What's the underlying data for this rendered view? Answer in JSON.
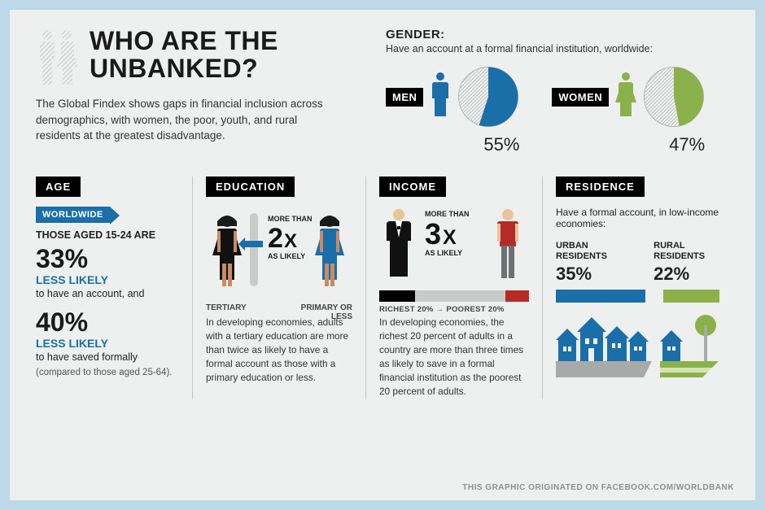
{
  "colors": {
    "frame": "#bdd8e6",
    "paper": "#eef0ef",
    "ink": "#1a1a1a",
    "black": "#000000",
    "white": "#ffffff",
    "blue": "#1a6fa9",
    "green": "#8bb24a",
    "red": "#b72b27",
    "grey": "#a8aaa9",
    "hatched": "#cfd1d0",
    "divider": "#c6c8c7",
    "silhouette": "#d6d8d7"
  },
  "title": "WHO ARE THE UNBANKED?",
  "intro": "The Global Findex shows gaps in financial inclusion across demographics, with women, the poor, youth, and rural residents at the greatest disadvantage.",
  "gender": {
    "heading": "GENDER:",
    "sub": "Have an account at a formal financial institution, worldwide:",
    "men": {
      "label": "MEN",
      "pct": "55%",
      "value": 55,
      "color": "#1a6fa9"
    },
    "women": {
      "label": "WOMEN",
      "pct": "47%",
      "value": 47,
      "color": "#8bb24a"
    }
  },
  "age": {
    "tag": "AGE",
    "worldwide": "WORLDWIDE",
    "line1": "THOSE AGED 15-24 ARE",
    "pct1": "33%",
    "ll1": "LESS LIKELY",
    "sub1": "to have an account, and",
    "pct2": "40%",
    "ll2": "LESS LIKELY",
    "sub2": "to have saved formally",
    "note": "(compared to those aged 25-64)."
  },
  "education": {
    "tag": "EDUCATION",
    "mult_pre": "MORE THAN",
    "mult_num": "2X",
    "mult_suf": "AS LIKELY",
    "left_label": "TERTIARY",
    "right_label": "PRIMARY OR LESS",
    "body": "In developing economies, adults with a tertiary education are more than twice as likely to have a formal account as those with a primary education or less.",
    "tertiary_color": "#000000",
    "primary_color": "#1a6fa9"
  },
  "income": {
    "tag": "INCOME",
    "mult_pre": "MORE THAN",
    "mult_num": "3X",
    "mult_suf": "AS LIKELY",
    "bar": {
      "rich": 0.24,
      "mid": 0.6,
      "poor": 0.16,
      "rich_color": "#000000",
      "mid_color": "#c9cbca",
      "poor_color": "#b72b27"
    },
    "bar_label": "RICHEST 20% → POOREST 20%",
    "body": "In developing economies, the richest 20 percent of adults in a country are more than three times as likely to save in a formal financial institution as the poorest 20 percent of adults."
  },
  "residence": {
    "tag": "RESIDENCE",
    "sub": "Have a formal account, in low-income economies:",
    "urban": {
      "label": "URBAN RESIDENTS",
      "pct": "35%",
      "value": 35,
      "color": "#1a6fa9"
    },
    "rural": {
      "label": "RURAL RESIDENTS",
      "pct": "22%",
      "value": 22,
      "color": "#8bb24a"
    }
  },
  "footer": "THIS GRAPHIC ORIGINATED ON FACEBOOK.COM/WORLDBANK"
}
